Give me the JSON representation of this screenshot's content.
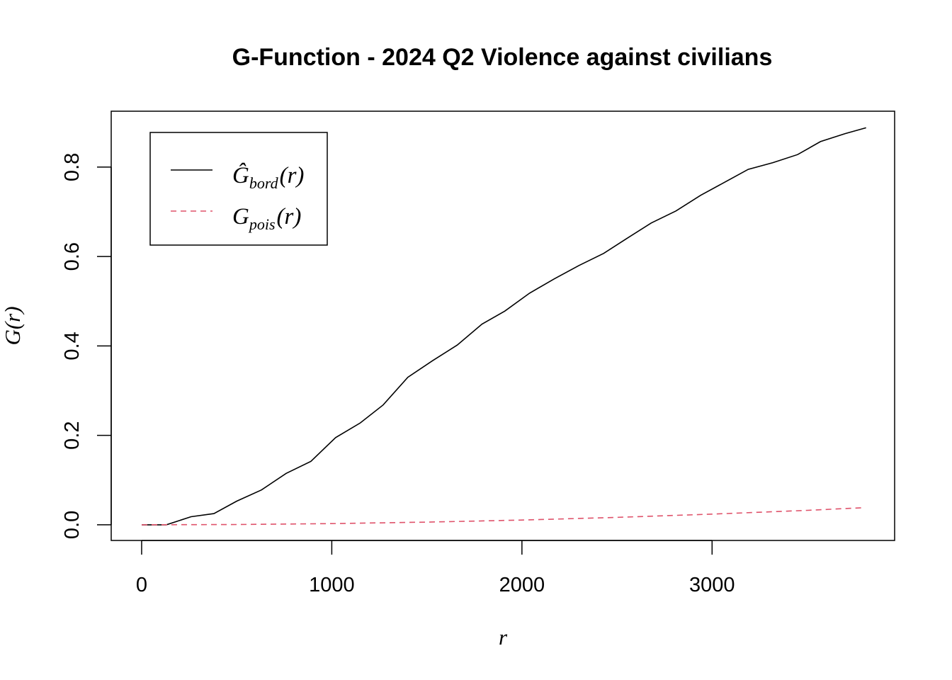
{
  "chart_data": {
    "type": "line",
    "title": "G-Function - 2024 Q2 Violence against civilians",
    "xlabel": "r",
    "ylabel": "G(r)",
    "xlim": [
      -160,
      3960
    ],
    "ylim": [
      -0.035,
      0.925
    ],
    "x_ticks": [
      0,
      1000,
      2000,
      3000
    ],
    "x_tick_labels": [
      "0",
      "1000",
      "2000",
      "3000"
    ],
    "y_ticks": [
      0.0,
      0.2,
      0.4,
      0.6,
      0.8
    ],
    "y_tick_labels": [
      "0.0",
      "0.2",
      "0.4",
      "0.6",
      "0.8"
    ],
    "grid": false,
    "legend_position": "top-left",
    "legend": [
      {
        "main": "Ĝ",
        "sub": "bord",
        "arg": "(r)",
        "color": "#000000",
        "dash": "solid"
      },
      {
        "main": "G",
        "sub": "pois",
        "arg": "(r)",
        "color": "#DF536B",
        "dash": "dashed"
      }
    ],
    "series": [
      {
        "color": "#000000",
        "dash": "solid",
        "x": [
          0,
          130,
          260,
          380,
          500,
          630,
          760,
          890,
          1020,
          1150,
          1270,
          1400,
          1530,
          1660,
          1790,
          1910,
          2040,
          2170,
          2300,
          2430,
          2550,
          2680,
          2810,
          2940,
          3070,
          3190,
          3320,
          3450,
          3570,
          3700,
          3810
        ],
        "values": [
          0.0,
          0.0,
          0.018,
          0.025,
          0.053,
          0.078,
          0.115,
          0.142,
          0.195,
          0.228,
          0.268,
          0.33,
          0.367,
          0.402,
          0.449,
          0.478,
          0.518,
          0.55,
          0.58,
          0.607,
          0.64,
          0.675,
          0.702,
          0.737,
          0.767,
          0.795,
          0.81,
          0.828,
          0.857,
          0.875,
          0.888
        ]
      },
      {
        "color": "#DF536B",
        "dash": "dashed",
        "x": [
          0,
          500,
          1000,
          1500,
          2000,
          2500,
          3000,
          3500,
          3800
        ],
        "values": [
          0.0,
          0.0006,
          0.0027,
          0.006,
          0.0107,
          0.0166,
          0.0239,
          0.0324,
          0.0383
        ]
      }
    ]
  }
}
